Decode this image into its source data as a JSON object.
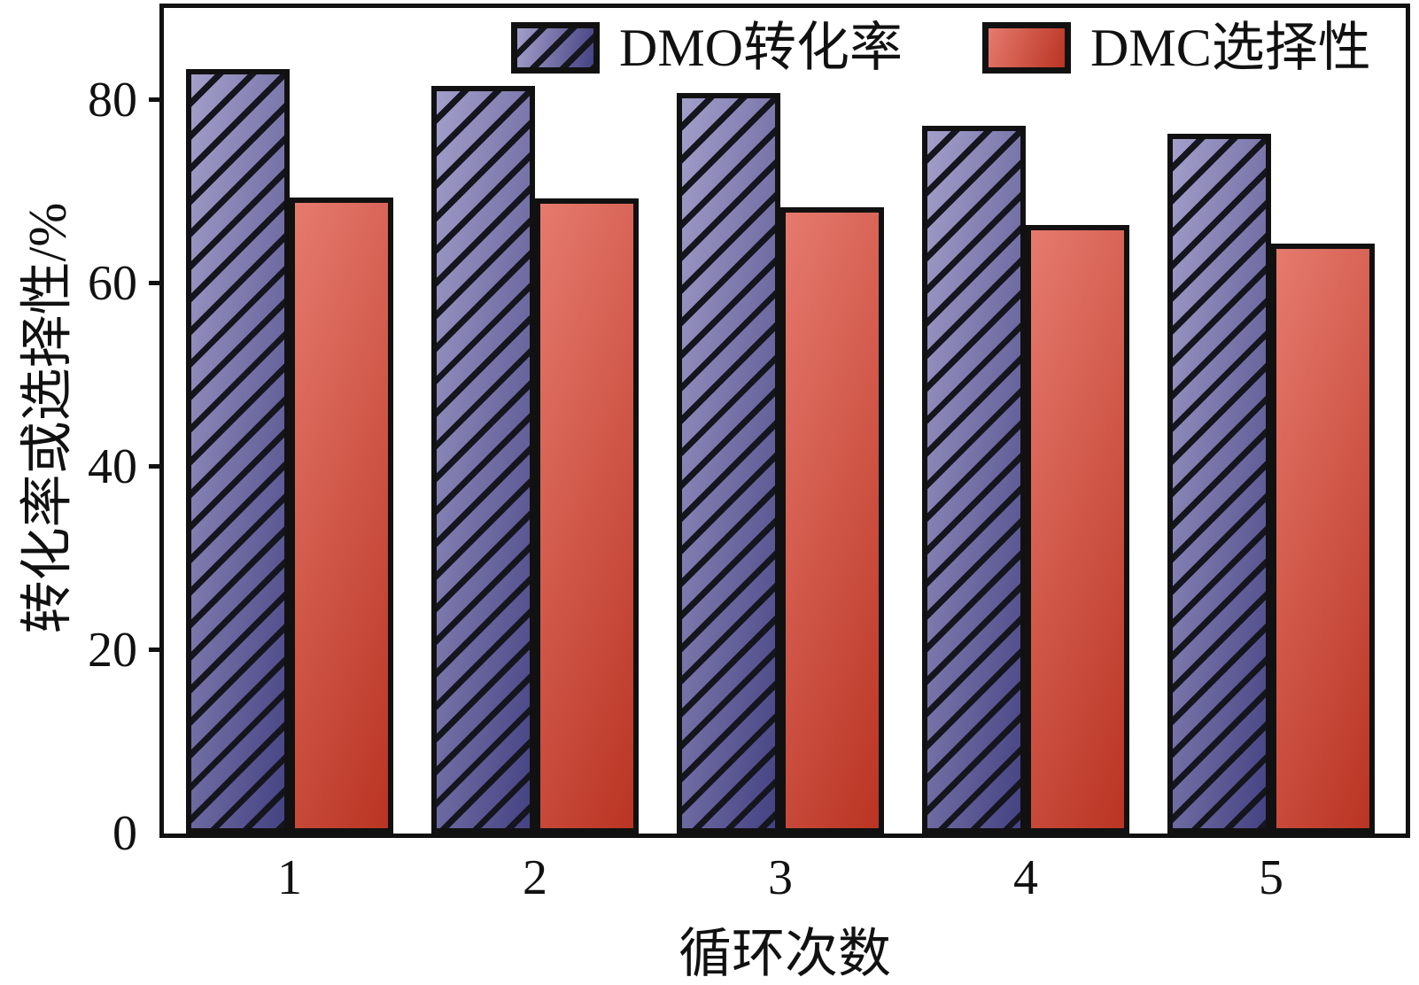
{
  "chart_data": {
    "type": "bar",
    "title": "",
    "categories": [
      "1",
      "2",
      "3",
      "4",
      "5"
    ],
    "series": [
      {
        "name": "DMO转化率",
        "style": "hatched-blue",
        "values": [
          83.3,
          81.5,
          80.7,
          77.2,
          76.3
        ]
      },
      {
        "name": "DMC选择性",
        "style": "solid-red",
        "values": [
          69.3,
          69.2,
          68.3,
          66.3,
          64.3
        ]
      }
    ],
    "xlabel": "循环次数",
    "ylabel": "转化率或选择性/%",
    "ylim": [
      0,
      90
    ],
    "yticks": [
      0,
      20,
      40,
      60,
      80
    ],
    "grid": false,
    "legend_position": "top-inside"
  },
  "colors": {
    "dmo_bar_light": "#a39fca",
    "dmo_bar_dark": "#454283",
    "dmc_bar_light": "#e57a6d",
    "dmc_bar_dark": "#ba3423",
    "hatch": "#15151e",
    "axis": "#111111",
    "background": "#ffffff"
  }
}
